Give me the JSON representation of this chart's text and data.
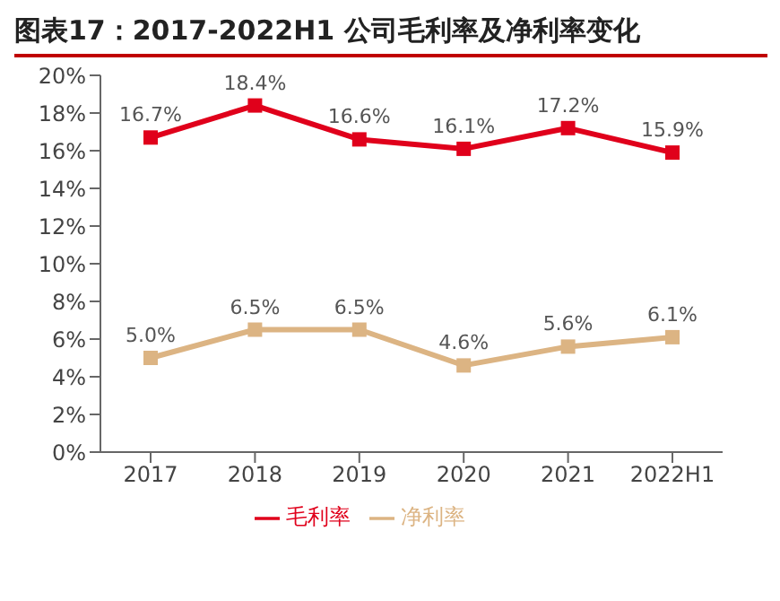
{
  "chart_data": {
    "type": "line",
    "title": "图表17：2017-2022H1 公司毛利率及净利率变化",
    "categories": [
      "2017",
      "2018",
      "2019",
      "2020",
      "2021",
      "2022H1"
    ],
    "series": [
      {
        "name": "毛利率",
        "color": "#e0001b",
        "values": [
          16.7,
          18.4,
          16.6,
          16.1,
          17.2,
          15.9
        ],
        "value_labels": [
          "16.7%",
          "18.4%",
          "16.6%",
          "16.1%",
          "17.2%",
          "15.9%"
        ]
      },
      {
        "name": "净利率",
        "color": "#dcb483",
        "values": [
          5.0,
          6.5,
          6.5,
          4.6,
          5.6,
          6.1
        ],
        "value_labels": [
          "5.0%",
          "6.5%",
          "6.5%",
          "4.6%",
          "5.6%",
          "6.1%"
        ]
      }
    ],
    "ylim": [
      0,
      20
    ],
    "yticks": [
      {
        "value": 0,
        "label": "0%"
      },
      {
        "value": 2,
        "label": "2%"
      },
      {
        "value": 4,
        "label": "4%"
      },
      {
        "value": 6,
        "label": "6%"
      },
      {
        "value": 8,
        "label": "8%"
      },
      {
        "value": 10,
        "label": "10%"
      },
      {
        "value": 12,
        "label": "12%"
      },
      {
        "value": 14,
        "label": "14%"
      },
      {
        "value": 16,
        "label": "16%"
      },
      {
        "value": 18,
        "label": "18%"
      },
      {
        "value": 20,
        "label": "20%"
      }
    ],
    "grid": false,
    "legend": "bottom",
    "marker": "square",
    "line_style": "solid"
  }
}
